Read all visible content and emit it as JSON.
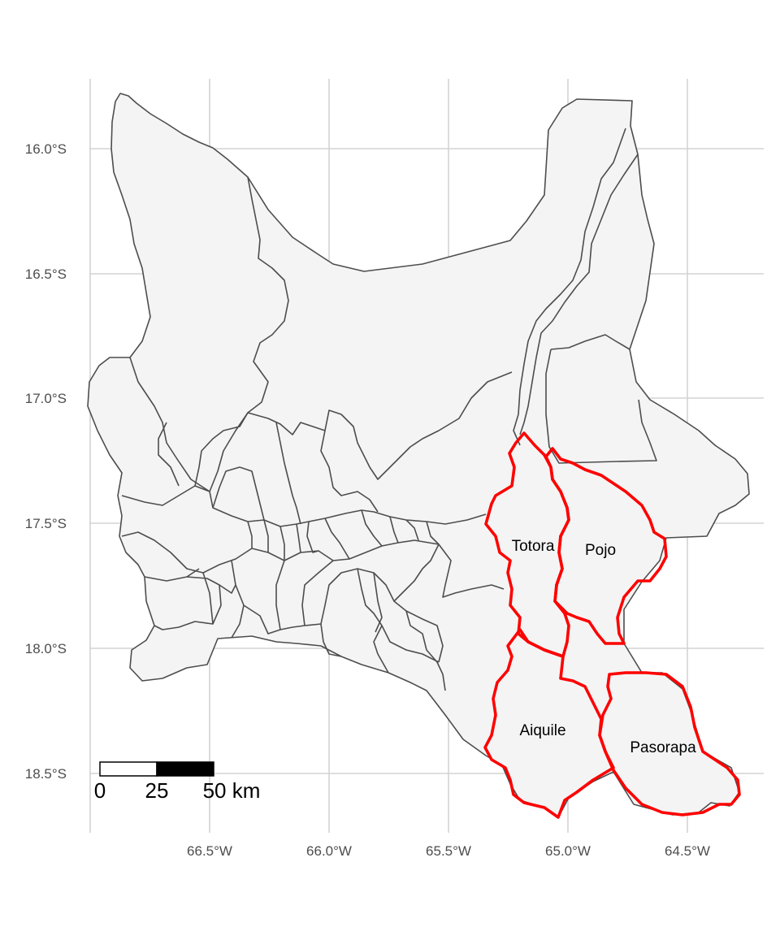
{
  "map": {
    "latitude_ticks": [
      "16.0°S",
      "16.5°S",
      "17.0°S",
      "17.5°S",
      "18.0°S",
      "18.5°S"
    ],
    "longitude_ticks": [
      "66.5°W",
      "66.0°W",
      "65.5°W",
      "65.0°W",
      "64.5°W"
    ],
    "highlighted_municipalities": [
      "Totora",
      "Pojo",
      "Aiquile",
      "Pasorapa"
    ],
    "scale_bar": {
      "labels": [
        "0",
        "25",
        "50 km"
      ]
    },
    "colors": {
      "region_fill": "#f4f4f4",
      "boundary": "#4d4d4d",
      "highlight": "#ff0000",
      "grid": "#d4d4d4"
    }
  }
}
